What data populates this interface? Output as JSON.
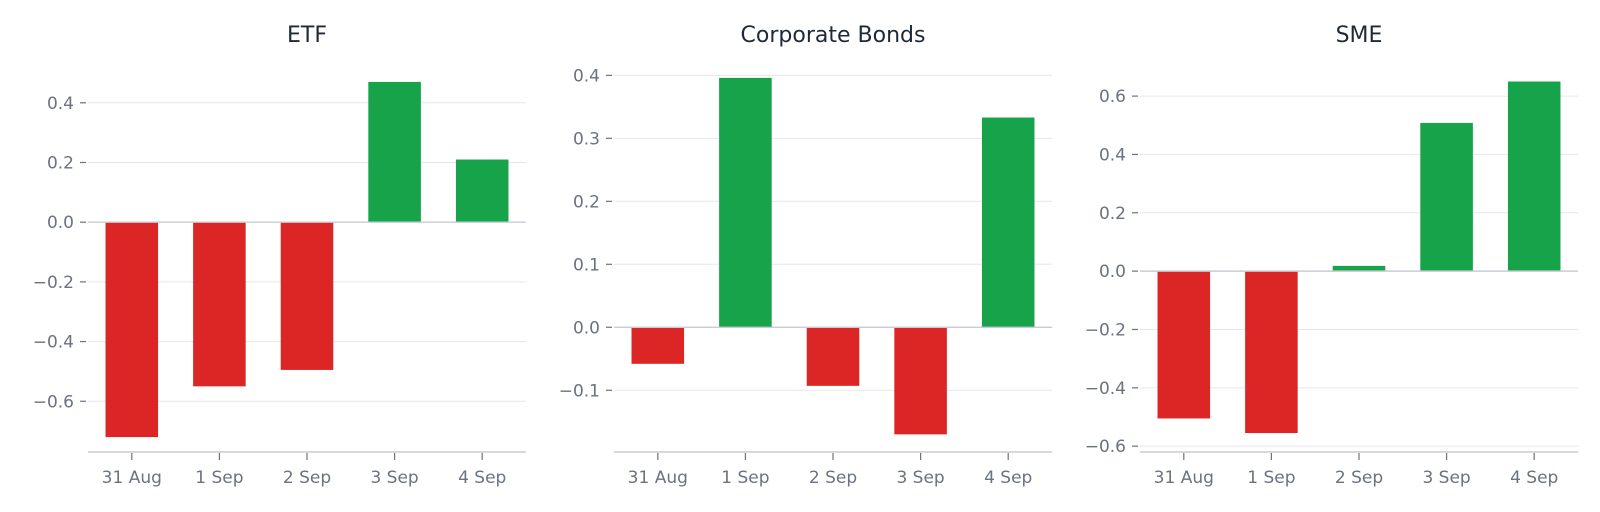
{
  "chart_data": [
    {
      "type": "bar",
      "title": "ETF",
      "categories": [
        "31 Aug",
        "1 Sep",
        "2 Sep",
        "3 Sep",
        "4 Sep"
      ],
      "values": [
        -0.72,
        -0.55,
        -0.495,
        0.47,
        0.21
      ],
      "ylim": [
        -0.77,
        0.53
      ],
      "yticks": [
        -0.6,
        -0.4,
        -0.2,
        0.0,
        0.2,
        0.4
      ],
      "ytick_labels": [
        "−0.6",
        "−0.4",
        "−0.2",
        "0.0",
        "0.2",
        "0.4"
      ],
      "grid": true
    },
    {
      "type": "bar",
      "title": "Corporate Bonds",
      "categories": [
        "31 Aug",
        "1 Sep",
        "2 Sep",
        "3 Sep",
        "4 Sep"
      ],
      "values": [
        -0.058,
        0.396,
        -0.093,
        -0.17,
        0.333
      ],
      "ylim": [
        -0.198,
        0.418
      ],
      "yticks": [
        -0.1,
        0.0,
        0.1,
        0.2,
        0.3,
        0.4
      ],
      "ytick_labels": [
        "−0.1",
        "0.0",
        "0.1",
        "0.2",
        "0.3",
        "0.4"
      ],
      "grid": true
    },
    {
      "type": "bar",
      "title": "SME",
      "categories": [
        "31 Aug",
        "1 Sep",
        "2 Sep",
        "3 Sep",
        "4 Sep"
      ],
      "values": [
        -0.505,
        -0.555,
        0.018,
        0.508,
        0.65
      ],
      "ylim": [
        -0.62,
        0.71
      ],
      "yticks": [
        -0.6,
        -0.4,
        -0.2,
        0.0,
        0.2,
        0.4,
        0.6
      ],
      "ytick_labels": [
        "−0.6",
        "−0.4",
        "−0.2",
        "0.0",
        "0.2",
        "0.4",
        "0.6"
      ],
      "grid": true
    }
  ],
  "colors": {
    "positive": "#16a34a",
    "negative": "#dc2626"
  }
}
